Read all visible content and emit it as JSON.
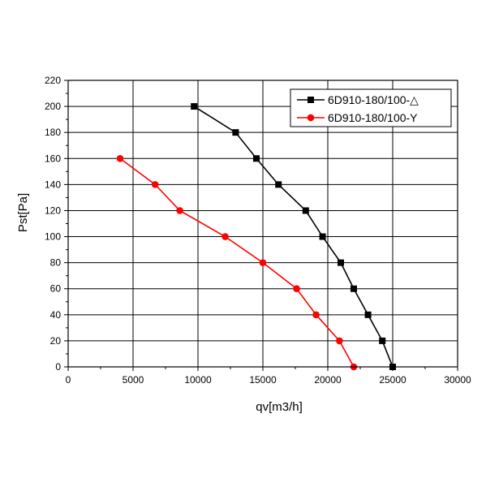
{
  "chart_data": {
    "type": "line",
    "title": "",
    "xlabel": "qv[m3/h]",
    "ylabel": "Pst[Pa]",
    "xlim": [
      0,
      30000
    ],
    "ylim": [
      0,
      220
    ],
    "x_ticks": [
      0,
      5000,
      10000,
      15000,
      20000,
      25000,
      30000
    ],
    "y_ticks": [
      0,
      20,
      40,
      60,
      80,
      100,
      120,
      140,
      160,
      180,
      200,
      220
    ],
    "grid": true,
    "legend_position": "top-right",
    "series": [
      {
        "name": "6D910-180/100-△",
        "color": "#000000",
        "marker": "square",
        "points": [
          {
            "x": 9700,
            "y": 200
          },
          {
            "x": 12900,
            "y": 180
          },
          {
            "x": 14500,
            "y": 160
          },
          {
            "x": 16200,
            "y": 140
          },
          {
            "x": 18300,
            "y": 120
          },
          {
            "x": 19600,
            "y": 100
          },
          {
            "x": 21000,
            "y": 80
          },
          {
            "x": 22000,
            "y": 60
          },
          {
            "x": 23100,
            "y": 40
          },
          {
            "x": 24200,
            "y": 20
          },
          {
            "x": 25000,
            "y": 0
          }
        ]
      },
      {
        "name": "6D910-180/100-Y",
        "color": "#ff0000",
        "marker": "circle",
        "points": [
          {
            "x": 4000,
            "y": 160
          },
          {
            "x": 6700,
            "y": 140
          },
          {
            "x": 8600,
            "y": 120
          },
          {
            "x": 12100,
            "y": 100
          },
          {
            "x": 15000,
            "y": 80
          },
          {
            "x": 17600,
            "y": 60
          },
          {
            "x": 19100,
            "y": 40
          },
          {
            "x": 20900,
            "y": 20
          },
          {
            "x": 22000,
            "y": 0
          }
        ]
      }
    ]
  }
}
